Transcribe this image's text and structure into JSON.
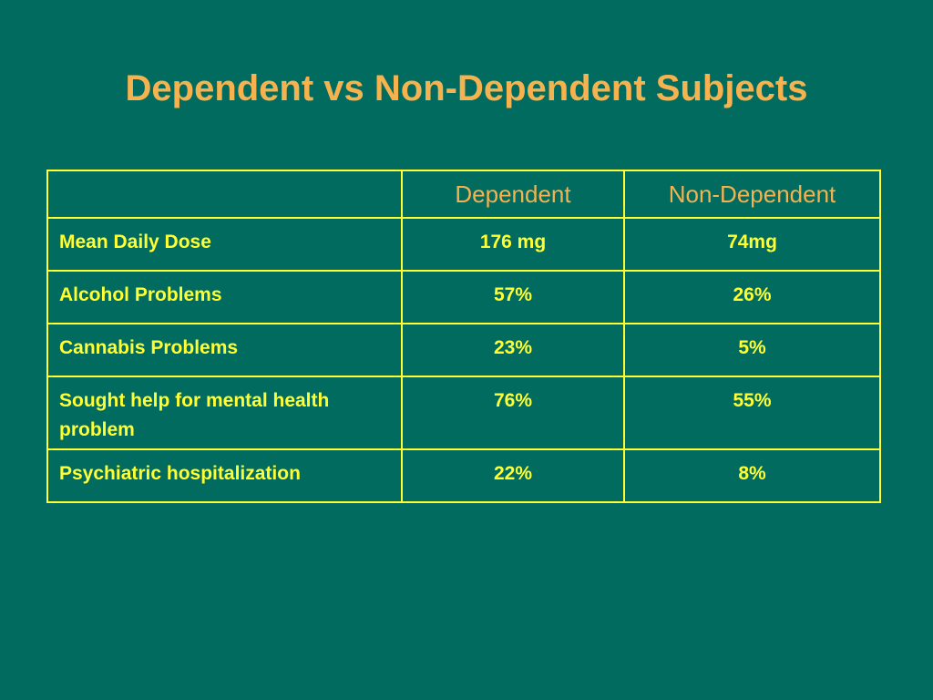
{
  "title": "Dependent vs Non-Dependent Subjects",
  "table": {
    "headers": [
      "",
      "Dependent",
      "Non-Dependent"
    ],
    "rows": [
      {
        "label": "Mean Daily Dose",
        "dependent": "176 mg",
        "non_dependent": "74mg"
      },
      {
        "label": "Alcohol Problems",
        "dependent": "57%",
        "non_dependent": "26%"
      },
      {
        "label": "Cannabis Problems",
        "dependent": "23%",
        "non_dependent": "5%"
      },
      {
        "label": "Sought help for mental health problem",
        "dependent": "76%",
        "non_dependent": "55%"
      },
      {
        "label": "Psychiatric hospitalization",
        "dependent": "22%",
        "non_dependent": "8%"
      }
    ]
  },
  "colors": {
    "background": "#006b5e",
    "title": "#f5b24f",
    "grid_and_text": "#ffff33"
  }
}
